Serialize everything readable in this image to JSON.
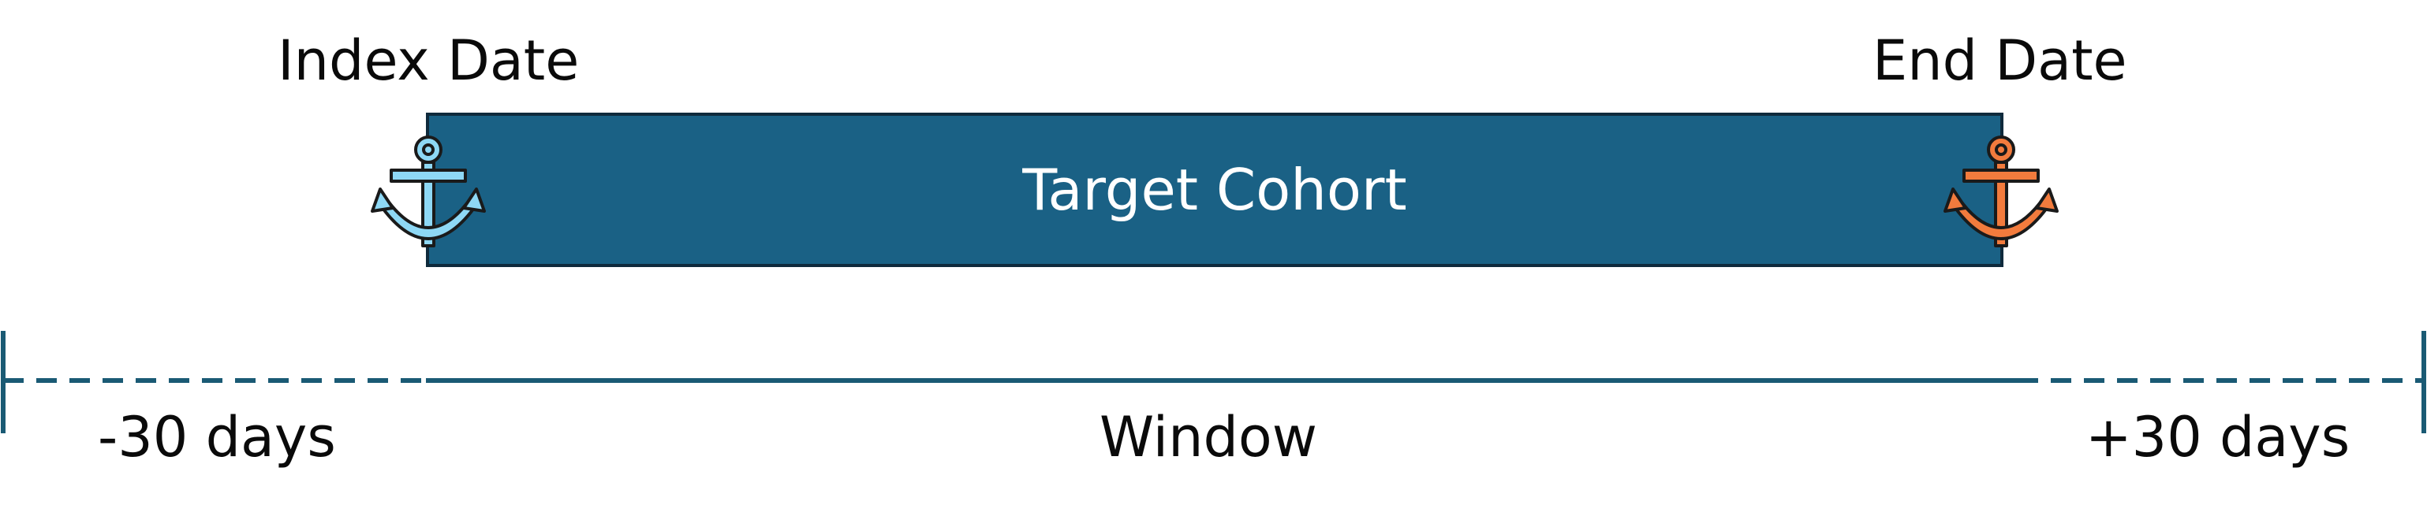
{
  "labels": {
    "index_date": "Index Date",
    "end_date": "End Date",
    "target_cohort": "Target Cohort",
    "before": "-30 days",
    "window": "Window",
    "after": "+30 days"
  },
  "icons": {
    "start_anchor": "anchor-icon",
    "end_anchor": "anchor-icon"
  },
  "colors": {
    "cohort_fill": "#1a6185",
    "cohort_border": "#0f2a3c",
    "timeline": "#1a5a74",
    "start_anchor": "#8ed8f5",
    "end_anchor": "#f27b3d",
    "anchor_outline": "#1a1a1a"
  }
}
